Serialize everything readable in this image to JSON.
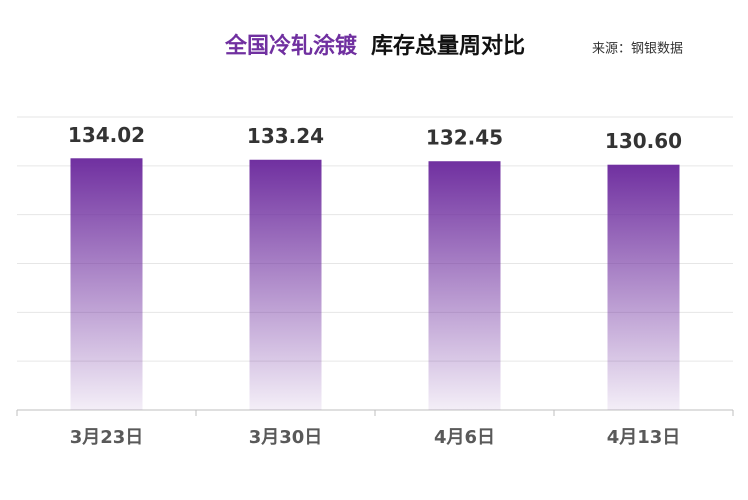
{
  "chart_data": {
    "type": "bar",
    "title": {
      "highlight": "全国冷轧涂镀",
      "rest": "库存总量周对比"
    },
    "source": "来源：钢银数据",
    "categories": [
      "3月23日",
      "3月30日",
      "4月6日",
      "4月13日"
    ],
    "values": [
      134.02,
      133.24,
      132.45,
      130.6
    ],
    "value_labels": [
      "134.02",
      "133.24",
      "132.45",
      "130.60"
    ],
    "color": "#7030a0",
    "ylim": [
      0,
      156
    ],
    "yticks": [
      0,
      26,
      52,
      78,
      104,
      130,
      156
    ],
    "grid": true
  }
}
